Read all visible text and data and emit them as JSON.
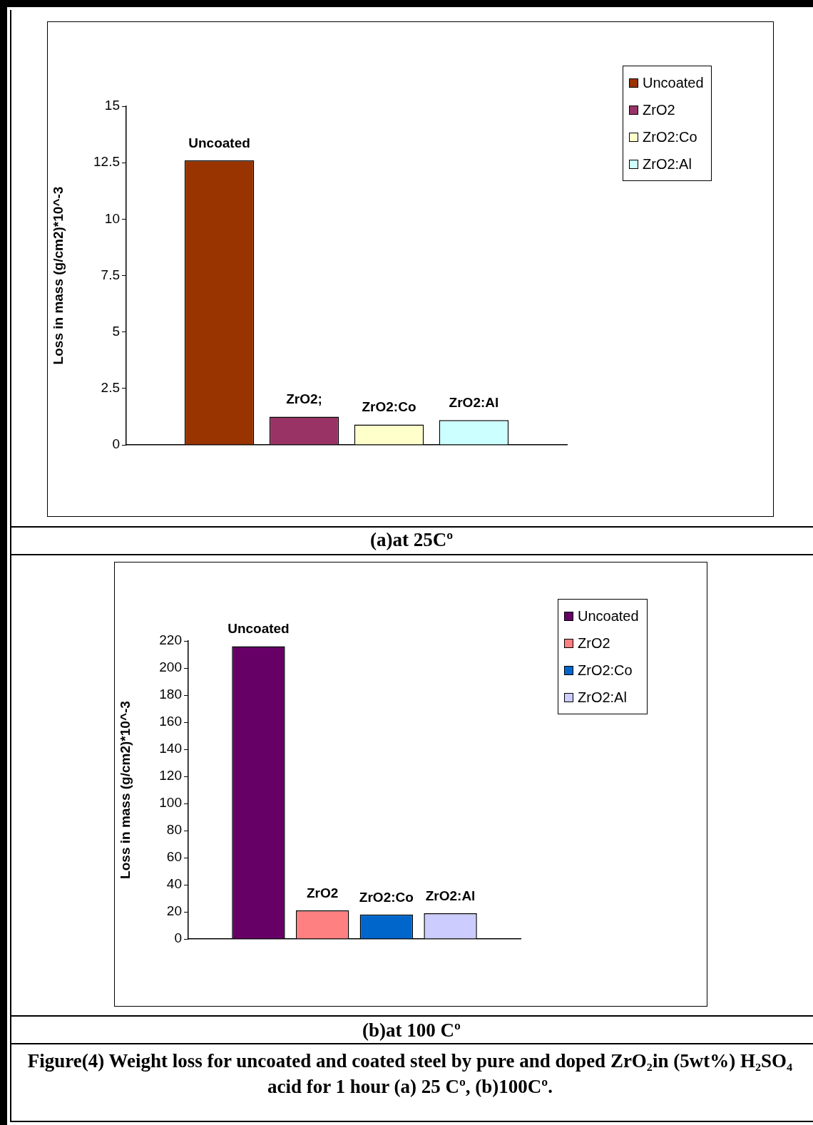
{
  "chart_data": [
    {
      "type": "bar",
      "title": "(a)at 25Cº",
      "ylabel": "Loss in mass (g/cm2)*10^-3",
      "categories": [
        null
      ],
      "series": [
        {
          "name": "Uncoated",
          "color": "#993300",
          "values": [
            12.6
          ],
          "value_labels": [
            "Uncoated"
          ]
        },
        {
          "name": "ZrO2",
          "color": "#993366",
          "values": [
            1.25
          ],
          "value_labels": [
            "ZrO2;"
          ]
        },
        {
          "name": "ZrO2:Co",
          "color": "#ffffcc",
          "values": [
            0.9
          ],
          "value_labels": [
            "ZrO2:Co"
          ]
        },
        {
          "name": "ZrO2:Al",
          "color": "#ccffff",
          "values": [
            1.1
          ],
          "value_labels": [
            "ZrO2:Al"
          ]
        }
      ],
      "ylim": [
        0,
        15
      ],
      "yticks": [
        0,
        2.5,
        5,
        7.5,
        10,
        12.5,
        15
      ],
      "grid": false,
      "legend": "top right",
      "tick_labels": "y"
    },
    {
      "type": "bar",
      "title": "(b)at 100 Cº",
      "ylabel": "Loss in mass (g/cm2)*10^-3",
      "categories": [
        null
      ],
      "series": [
        {
          "name": "Uncoated",
          "color": "#660066",
          "values": [
            216
          ],
          "value_labels": [
            "Uncoated"
          ]
        },
        {
          "name": "ZrO2",
          "color": "#ff8080",
          "values": [
            21
          ],
          "value_labels": [
            "ZrO2"
          ]
        },
        {
          "name": "ZrO2:Co",
          "color": "#0066cc",
          "values": [
            18
          ],
          "value_labels": [
            "ZrO2:Co"
          ]
        },
        {
          "name": "ZrO2:Al",
          "color": "#ccccff",
          "values": [
            19
          ],
          "value_labels": [
            "ZrO2:Al"
          ]
        }
      ],
      "ylim": [
        0,
        220
      ],
      "yticks": [
        0,
        20,
        40,
        60,
        80,
        100,
        120,
        140,
        160,
        180,
        200,
        220
      ],
      "grid": false,
      "legend": "top right",
      "tick_labels": "y",
      "annotations": [
        "Figure(4) Weight loss for uncoated and coated steel by pure  and doped ZrO₂in (5wt%) H₂SO₄ acid for 1 hour (a) 25 Cº, (b)100Cº."
      ]
    }
  ]
}
